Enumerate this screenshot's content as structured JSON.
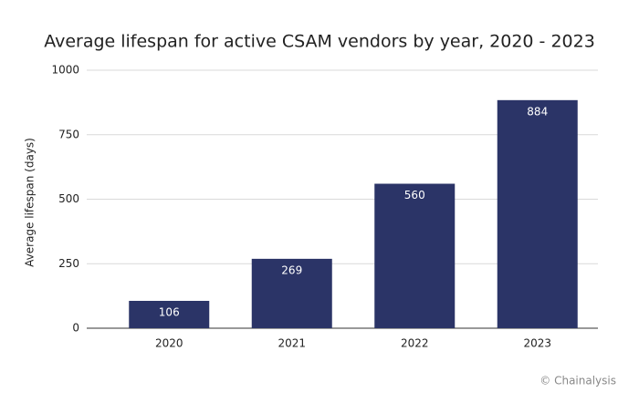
{
  "chart_data": {
    "type": "bar",
    "title": "Average lifespan for active CSAM vendors by year, 2020 - 2023",
    "y_label": "Average lifespan (days)",
    "categories": [
      "2020",
      "2021",
      "2022",
      "2023"
    ],
    "values": [
      106,
      269,
      560,
      884
    ],
    "color": "#2b3467",
    "ylim": [
      0,
      1000
    ],
    "yticks": [
      0,
      250,
      500,
      750,
      1000
    ],
    "grid": true,
    "data_labels": true,
    "credit": "© Chainalysis"
  }
}
